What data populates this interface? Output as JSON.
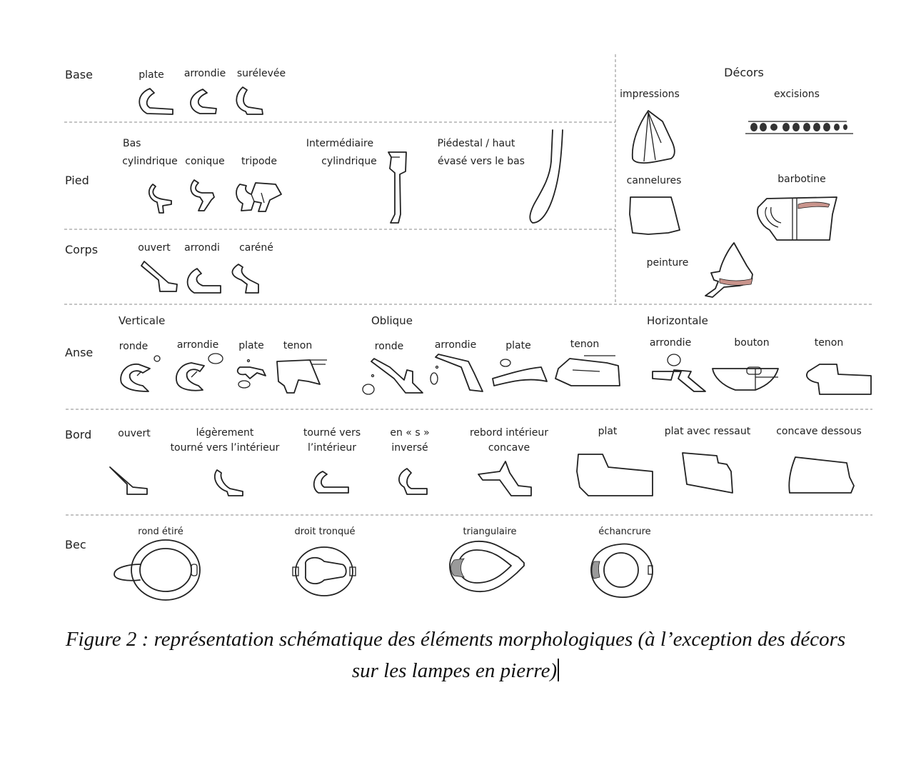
{
  "rows": {
    "base": "Base",
    "pied": "Pied",
    "corps": "Corps",
    "anse": "Anse",
    "bord": "Bord",
    "bec": "Bec"
  },
  "base": {
    "plate": "plate",
    "arrondie": "arrondie",
    "surelevee": "surélevée"
  },
  "pied": {
    "bas": "Bas",
    "cylindrique": "cylindrique",
    "conique": "conique",
    "tripode": "tripode",
    "intermediaire": "Intermédiaire",
    "inter_cylindrique": "cylindrique",
    "piedestal": "Piédestal / haut",
    "evase": "évasé vers le bas"
  },
  "corps": {
    "ouvert": "ouvert",
    "arrondi": "arrondi",
    "carene": "caréné"
  },
  "decors": {
    "title": "Décors",
    "impressions": "impressions",
    "excisions": "excisions",
    "cannelures": "cannelures",
    "barbotine": "barbotine",
    "peinture": "peinture"
  },
  "anse": {
    "verticale": "Verticale",
    "oblique": "Oblique",
    "horizontale": "Horizontale",
    "v_ronde": "ronde",
    "v_arrondie": "arrondie",
    "v_plate": "plate",
    "v_tenon": "tenon",
    "o_ronde": "ronde",
    "o_arrondie": "arrondie",
    "o_plate": "plate",
    "o_tenon": "tenon",
    "h_arrondie": "arrondie",
    "h_bouton": "bouton",
    "h_tenon": "tenon"
  },
  "bord": {
    "ouvert": "ouvert",
    "leg1": "légèrement",
    "leg2": "tourné vers l’intérieur",
    "tourne1": "tourné vers",
    "tourne2": "l’intérieur",
    "ens1": "en « s »",
    "ens2": "inversé",
    "rebord1": "rebord intérieur",
    "rebord2": "concave",
    "plat": "plat",
    "ressaut": "plat avec ressaut",
    "concave": "concave dessous"
  },
  "bec": {
    "rond": "rond étiré",
    "droit": "droit tronqué",
    "triangulaire": "triangulaire",
    "echancrure": "échancrure"
  },
  "caption": {
    "line1": "Figure 2 : représentation schématique des éléments morphologiques (à l’exception des décors",
    "line2": "sur les lampes en pierre)"
  },
  "colors": {
    "barbotine": "#c9948c",
    "peinture": "#c9948c",
    "shading": "#9a9a9a",
    "line": "#222222"
  }
}
